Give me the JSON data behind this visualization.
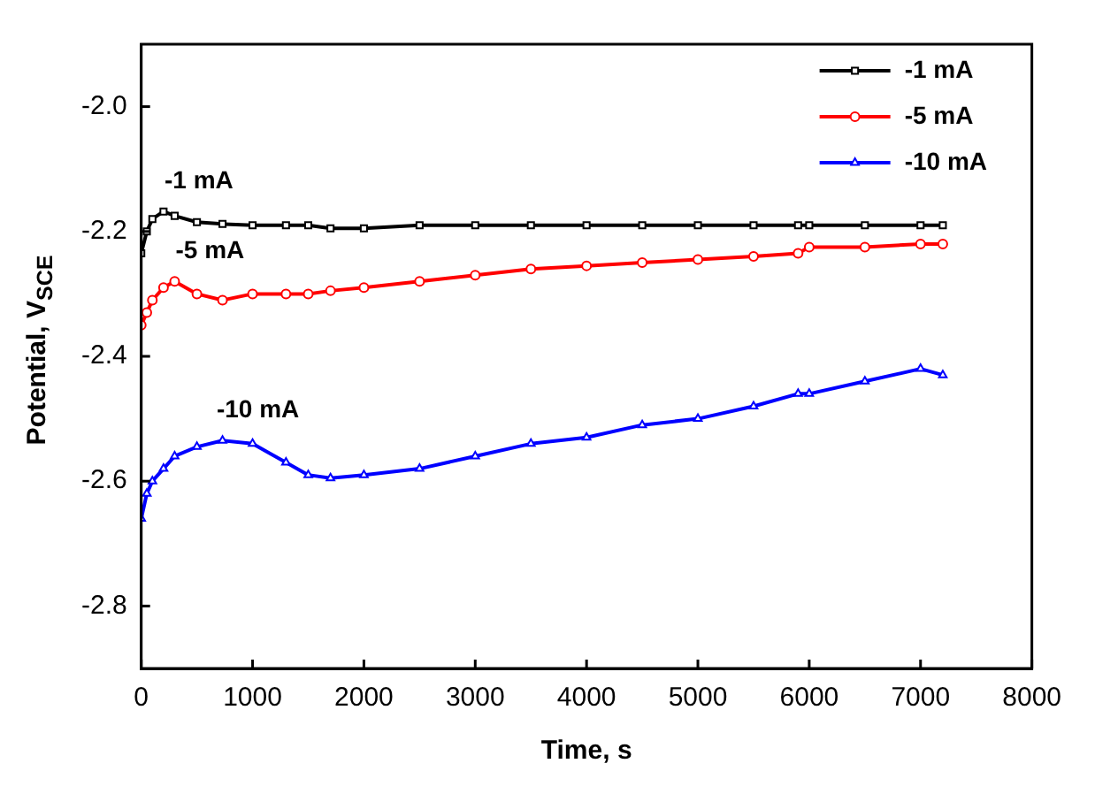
{
  "chart_data": {
    "type": "line",
    "xlabel": "Time, s",
    "ylabel": "Potential, V$_{SCE}$",
    "xlim": [
      0,
      8000
    ],
    "xticks": [
      0,
      1000,
      2000,
      3000,
      4000,
      5000,
      6000,
      7000,
      8000
    ],
    "ylim": [
      -2.9,
      -1.9
    ],
    "yticks": [
      {
        "value": -2.8,
        "label": "-2.8"
      },
      {
        "value": -2.6,
        "label": "-2.6"
      },
      {
        "value": -2.4,
        "label": "-2.4"
      },
      {
        "value": -2.2,
        "label": "-2.2"
      },
      {
        "value": -2,
        "label": "-2.0"
      }
    ],
    "grid": false,
    "legend": "top right",
    "line_style": "solid",
    "x": [
      0,
      50,
      100,
      200,
      300,
      500,
      730,
      1000,
      1300,
      1500,
      1700,
      2000,
      2500,
      3000,
      3500,
      4000,
      4500,
      5000,
      5500,
      5900,
      6000,
      6500,
      7000,
      7200
    ],
    "series": [
      {
        "name": "-1 mA",
        "color": "#000000",
        "marker": "square",
        "values": [
          -2.235,
          -2.2,
          -2.18,
          -2.168,
          -2.175,
          -2.185,
          -2.188,
          -2.19,
          -2.19,
          -2.19,
          -2.195,
          -2.195,
          -2.19,
          -2.19,
          -2.19,
          -2.19,
          -2.19,
          -2.19,
          -2.19,
          -2.19,
          -2.19,
          -2.19,
          -2.19,
          -2.19
        ]
      },
      {
        "name": "-5 mA",
        "color": "#ff0000",
        "marker": "circle",
        "values": [
          -2.35,
          -2.33,
          -2.31,
          -2.29,
          -2.28,
          -2.3,
          -2.31,
          -2.3,
          -2.3,
          -2.3,
          -2.295,
          -2.29,
          -2.28,
          -2.27,
          -2.26,
          -2.255,
          -2.25,
          -2.245,
          -2.24,
          -2.235,
          -2.225,
          -2.225,
          -2.22,
          -2.22
        ]
      },
      {
        "name": "-10 mA",
        "color": "#0000ff",
        "marker": "triangle",
        "values": [
          -2.66,
          -2.62,
          -2.6,
          -2.58,
          -2.56,
          -2.545,
          -2.535,
          -2.54,
          -2.57,
          -2.59,
          -2.595,
          -2.59,
          -2.58,
          -2.56,
          -2.54,
          -2.53,
          -2.51,
          -2.5,
          -2.48,
          -2.46,
          -2.46,
          -2.44,
          -2.42,
          -2.43
        ]
      }
    ],
    "annotations": [
      "-1 mA",
      "-5 mA",
      "-10 mA"
    ]
  }
}
